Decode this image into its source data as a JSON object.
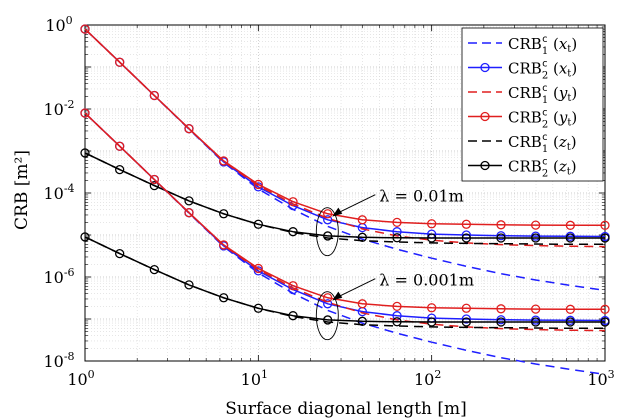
{
  "chart_data": {
    "type": "line",
    "xscale": "log",
    "yscale": "log",
    "xlim": [
      1,
      1000
    ],
    "ylim": [
      1e-08,
      1
    ],
    "xlabel": "Surface diagonal length [m]",
    "ylabel": "CRB [m²]",
    "grid": true,
    "legend_position": "top-right",
    "x_tick_labels": [
      {
        "base": "10",
        "exp": "0"
      },
      {
        "base": "10",
        "exp": "1"
      },
      {
        "base": "10",
        "exp": "2"
      },
      {
        "base": "10",
        "exp": "3"
      }
    ],
    "y_tick_labels": [
      {
        "base": "10",
        "exp": "0"
      },
      {
        "base": "10",
        "exp": "-2"
      },
      {
        "base": "10",
        "exp": "-4"
      },
      {
        "base": "10",
        "exp": "-6"
      },
      {
        "base": "10",
        "exp": "-8"
      }
    ],
    "x": [
      1,
      1.585,
      2.512,
      3.981,
      6.31,
      10,
      15.85,
      25.12,
      39.81,
      63.1,
      100,
      158.5,
      251.2,
      398.1,
      631,
      1000
    ],
    "series": [
      {
        "name": "CRB₁ᶜ (xₜ)",
        "group": "λ = 0.01m",
        "color": "#1f1fff",
        "dash": "dashed",
        "marker": "none",
        "values": [
          0.8,
          0.13,
          0.021,
          0.0033,
          0.00053,
          0.000125,
          4.1e-05,
          1.6e-05,
          8e-06,
          4.6e-06,
          2.8e-06,
          1.8e-06,
          1.2e-06,
          8.5e-07,
          6.3e-07,
          4.8e-07
        ]
      },
      {
        "name": "CRB₂ᶜ (xₜ)",
        "group": "λ = 0.01m",
        "color": "#1f1fff",
        "dash": "solid",
        "marker": "circle",
        "values": [
          0.8,
          0.13,
          0.021,
          0.0034,
          0.00055,
          0.00014,
          5e-05,
          2.3e-05,
          1.5e-05,
          1.2e-05,
          1.05e-05,
          1e-05,
          9.6e-06,
          9.4e-06,
          9.3e-06,
          9.2e-06
        ]
      },
      {
        "name": "CRB₁ᶜ (yₜ)",
        "group": "λ = 0.01m",
        "color": "#e01f1f",
        "dash": "dashed",
        "marker": "none",
        "values": [
          0.8,
          0.13,
          0.021,
          0.0034,
          0.00056,
          0.00015,
          5.5e-05,
          2.5e-05,
          1.4e-05,
          9.5e-06,
          7.5e-06,
          6.5e-06,
          5.9e-06,
          5.6e-06,
          5.4e-06,
          5.3e-06
        ]
      },
      {
        "name": "CRB₂ᶜ (yₜ)",
        "group": "λ = 0.01m",
        "color": "#e01f1f",
        "dash": "solid",
        "marker": "circle",
        "values": [
          0.8,
          0.13,
          0.021,
          0.0034,
          0.00058,
          0.00016,
          6.2e-05,
          3.2e-05,
          2.3e-05,
          2e-05,
          1.85e-05,
          1.8e-05,
          1.75e-05,
          1.72e-05,
          1.7e-05,
          1.7e-05
        ]
      },
      {
        "name": "CRB₁ᶜ (zₜ)",
        "group": "λ = 0.01m",
        "color": "#000000",
        "dash": "dashed",
        "marker": "none",
        "values": [
          0.0009,
          0.00036,
          0.00015,
          6.5e-05,
          3.2e-05,
          1.8e-05,
          1.15e-05,
          8.5e-06,
          7.3e-06,
          6.8e-06,
          6.5e-06,
          6.3e-06,
          6.2e-06,
          6.1e-06,
          6e-06,
          6e-06
        ]
      },
      {
        "name": "CRB₂ᶜ (zₜ)",
        "group": "λ = 0.01m",
        "color": "#000000",
        "dash": "solid",
        "marker": "circle",
        "values": [
          0.0009,
          0.00036,
          0.00015,
          6.5e-05,
          3.2e-05,
          1.8e-05,
          1.2e-05,
          9.5e-06,
          8.8e-06,
          8.6e-06,
          8.5e-06,
          8.5e-06,
          8.5e-06,
          8.5e-06,
          8.5e-06,
          8.5e-06
        ]
      },
      {
        "name": "CRB₁ᶜ (xₜ)",
        "group": "λ = 0.001m",
        "color": "#1f1fff",
        "dash": "dashed",
        "marker": "none",
        "values": [
          0.008,
          0.0013,
          0.00021,
          3.3e-05,
          5.3e-06,
          1.25e-06,
          4.1e-07,
          1.6e-07,
          8e-08,
          4.6e-08,
          2.8e-08,
          1.8e-08,
          1.2e-08,
          8.5e-09,
          6.3e-09,
          4.8e-09
        ]
      },
      {
        "name": "CRB₂ᶜ (xₜ)",
        "group": "λ = 0.001m",
        "color": "#1f1fff",
        "dash": "solid",
        "marker": "circle",
        "values": [
          0.008,
          0.0013,
          0.00021,
          3.4e-05,
          5.5e-06,
          1.4e-06,
          5e-07,
          2.3e-07,
          1.5e-07,
          1.2e-07,
          1.05e-07,
          1e-07,
          9.6e-08,
          9.4e-08,
          9.3e-08,
          9.2e-08
        ]
      },
      {
        "name": "CRB₁ᶜ (yₜ)",
        "group": "λ = 0.001m",
        "color": "#e01f1f",
        "dash": "dashed",
        "marker": "none",
        "values": [
          0.008,
          0.0013,
          0.00021,
          3.4e-05,
          5.6e-06,
          1.5e-06,
          5.5e-07,
          2.5e-07,
          1.4e-07,
          9.5e-08,
          7.5e-08,
          6.5e-08,
          5.9e-08,
          5.6e-08,
          5.4e-08,
          5.3e-08
        ]
      },
      {
        "name": "CRB₂ᶜ (yₜ)",
        "group": "λ = 0.001m",
        "color": "#e01f1f",
        "dash": "solid",
        "marker": "circle",
        "values": [
          0.008,
          0.0013,
          0.00021,
          3.4e-05,
          5.8e-06,
          1.6e-06,
          6.2e-07,
          3.2e-07,
          2.3e-07,
          2e-07,
          1.85e-07,
          1.8e-07,
          1.75e-07,
          1.72e-07,
          1.7e-07,
          1.7e-07
        ]
      },
      {
        "name": "CRB₁ᶜ (zₜ)",
        "group": "λ = 0.001m",
        "color": "#000000",
        "dash": "dashed",
        "marker": "none",
        "values": [
          9e-06,
          3.6e-06,
          1.5e-06,
          6.5e-07,
          3.2e-07,
          1.8e-07,
          1.15e-07,
          8.5e-08,
          7.3e-08,
          6.8e-08,
          6.5e-08,
          6.3e-08,
          6.2e-08,
          6.1e-08,
          6e-08,
          6e-08
        ]
      },
      {
        "name": "CRB₂ᶜ (zₜ)",
        "group": "λ = 0.001m",
        "color": "#000000",
        "dash": "solid",
        "marker": "circle",
        "values": [
          9e-06,
          3.6e-06,
          1.5e-06,
          6.5e-07,
          3.2e-07,
          1.8e-07,
          1.2e-07,
          9.5e-08,
          8.8e-08,
          8.6e-08,
          8.5e-08,
          8.5e-08,
          8.5e-08,
          8.5e-08,
          8.5e-08,
          8.5e-08
        ]
      }
    ],
    "legend": [
      {
        "base": "CRB",
        "sup": "c",
        "sub": "1",
        "var": "x",
        "color": "#1f1fff",
        "dash": "dashed",
        "marker": "none"
      },
      {
        "base": "CRB",
        "sup": "c",
        "sub": "2",
        "var": "x",
        "color": "#1f1fff",
        "dash": "solid",
        "marker": "circle"
      },
      {
        "base": "CRB",
        "sup": "c",
        "sub": "1",
        "var": "y",
        "color": "#e01f1f",
        "dash": "dashed",
        "marker": "none"
      },
      {
        "base": "CRB",
        "sup": "c",
        "sub": "2",
        "var": "y",
        "color": "#e01f1f",
        "dash": "solid",
        "marker": "circle"
      },
      {
        "base": "CRB",
        "sup": "c",
        "sub": "1",
        "var": "z",
        "color": "#000000",
        "dash": "dashed",
        "marker": "none"
      },
      {
        "base": "CRB",
        "sup": "c",
        "sub": "2",
        "var": "z",
        "color": "#000000",
        "dash": "solid",
        "marker": "circle"
      }
    ],
    "annotations": [
      {
        "text": "λ = 0.01m",
        "ellipse_center": [
          25,
          1.2e-05
        ]
      },
      {
        "text": "λ = 0.001m",
        "ellipse_center": [
          25,
          1.2e-07
        ]
      }
    ]
  }
}
